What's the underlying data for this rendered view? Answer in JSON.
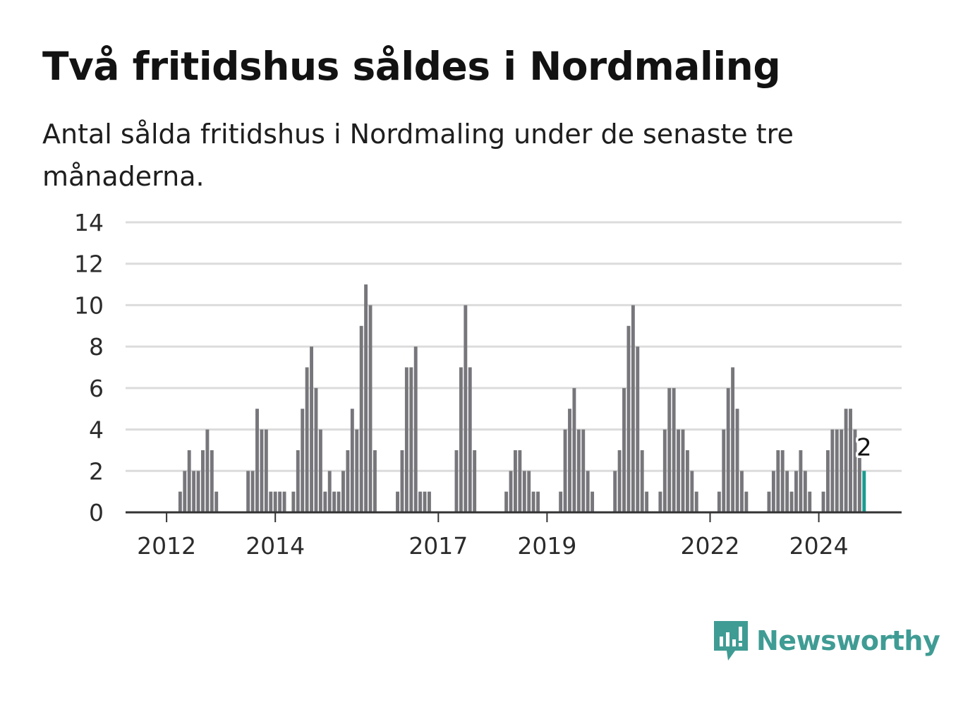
{
  "title": "Två fritidshus såldes i Nordmaling",
  "subtitle": "Antal sålda fritidshus i Nordmaling under de senaste tre månaderna.",
  "brand": {
    "name": "Newsworthy",
    "color": "#3f9c94",
    "icon": "newsworthy-logo-icon"
  },
  "chart_data": {
    "type": "bar",
    "title": "Två fritidshus såldes i Nordmaling",
    "subtitle": "Antal sålda fritidshus i Nordmaling under de senaste tre månaderna.",
    "ylim": [
      0,
      14
    ],
    "yticks": [
      0,
      2,
      4,
      6,
      8,
      10,
      12,
      14
    ],
    "x_tick_labels": [
      {
        "label": "2012",
        "index": 8
      },
      {
        "label": "2014",
        "index": 32
      },
      {
        "label": "2017",
        "index": 68
      },
      {
        "label": "2019",
        "index": 92
      },
      {
        "label": "2022",
        "index": 128
      },
      {
        "label": "2024",
        "index": 152
      }
    ],
    "grid": true,
    "bar_color": "#77767b",
    "highlight_color": "#1a9b90",
    "highlight_index": 162,
    "highlight_label": "2",
    "values": [
      0,
      0,
      0,
      0,
      0,
      0,
      0,
      0,
      0,
      0,
      0,
      1,
      2,
      3,
      2,
      2,
      3,
      4,
      3,
      1,
      0,
      0,
      0,
      0,
      0,
      0,
      2,
      2,
      5,
      4,
      4,
      1,
      1,
      1,
      1,
      0,
      1,
      3,
      5,
      7,
      8,
      6,
      4,
      1,
      2,
      1,
      1,
      2,
      3,
      5,
      4,
      9,
      11,
      10,
      3,
      0,
      0,
      0,
      0,
      1,
      3,
      7,
      7,
      8,
      1,
      1,
      1,
      0,
      0,
      0,
      0,
      0,
      3,
      7,
      10,
      7,
      3,
      0,
      0,
      0,
      0,
      0,
      0,
      1,
      2,
      3,
      3,
      2,
      2,
      1,
      1,
      0,
      0,
      0,
      0,
      1,
      4,
      5,
      6,
      4,
      4,
      2,
      1,
      0,
      0,
      0,
      0,
      2,
      3,
      6,
      9,
      10,
      8,
      3,
      1,
      0,
      0,
      1,
      4,
      6,
      6,
      4,
      4,
      3,
      2,
      1,
      0,
      0,
      0,
      0,
      1,
      4,
      6,
      7,
      5,
      2,
      1,
      0,
      0,
      0,
      0,
      1,
      2,
      3,
      3,
      2,
      1,
      2,
      3,
      2,
      1,
      0,
      0,
      1,
      3,
      4,
      4,
      4,
      5,
      5,
      4,
      3,
      2
    ]
  }
}
